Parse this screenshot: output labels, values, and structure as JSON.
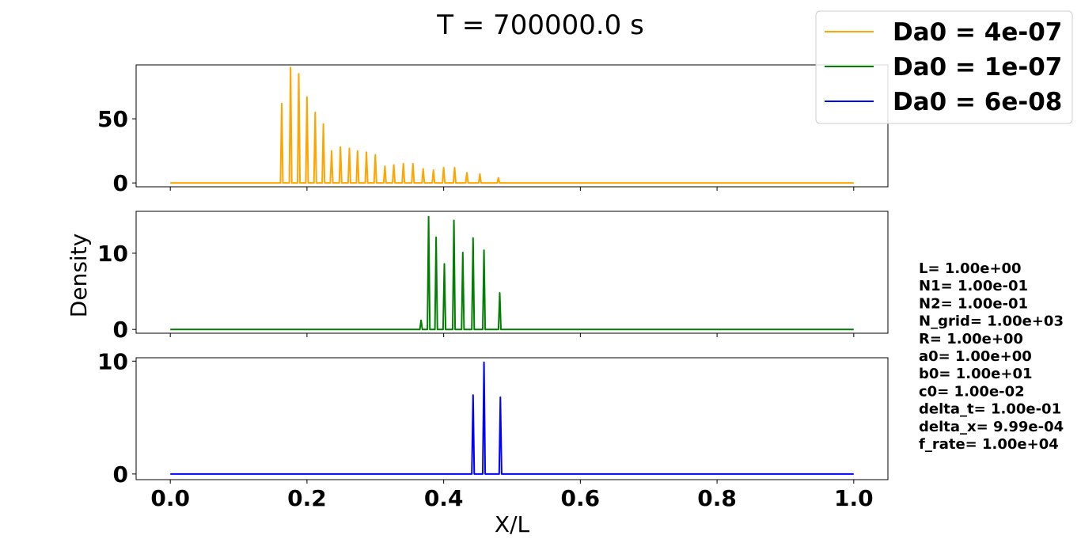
{
  "chart_data": {
    "type": "line",
    "title": "T = 700000.0 s",
    "xlabel": "X/L",
    "ylabel": "Density",
    "xlim": [
      -0.05,
      1.05
    ],
    "x_ticks": [
      "0.0",
      "0.2",
      "0.4",
      "0.6",
      "0.8",
      "1.0"
    ],
    "legend_location": "top-right",
    "subplots": [
      {
        "series_name": "Da0 = 4e-07",
        "color": "#ffa500",
        "ylim": [
          -3,
          92
        ],
        "y_ticks": [
          "0",
          "50"
        ],
        "peaks": [
          [
            0.163,
            62
          ],
          [
            0.176,
            90
          ],
          [
            0.188,
            85
          ],
          [
            0.2,
            67
          ],
          [
            0.212,
            55
          ],
          [
            0.224,
            46
          ],
          [
            0.236,
            25
          ],
          [
            0.249,
            28
          ],
          [
            0.262,
            27
          ],
          [
            0.274,
            25
          ],
          [
            0.287,
            24
          ],
          [
            0.3,
            22
          ],
          [
            0.314,
            13
          ],
          [
            0.327,
            14
          ],
          [
            0.341,
            15
          ],
          [
            0.355,
            15
          ],
          [
            0.37,
            11
          ],
          [
            0.385,
            10
          ],
          [
            0.4,
            12
          ],
          [
            0.416,
            12
          ],
          [
            0.434,
            8
          ],
          [
            0.453,
            7
          ],
          [
            0.48,
            4
          ]
        ]
      },
      {
        "series_name": "Da0 = 1e-07",
        "color": "#008000",
        "ylim": [
          -0.5,
          15.5
        ],
        "y_ticks": [
          "0",
          "10"
        ],
        "peaks": [
          [
            0.367,
            1.2
          ],
          [
            0.378,
            14.8
          ],
          [
            0.389,
            12.1
          ],
          [
            0.401,
            8.6
          ],
          [
            0.415,
            14.3
          ],
          [
            0.428,
            10.1
          ],
          [
            0.443,
            12.0
          ],
          [
            0.459,
            10.4
          ],
          [
            0.482,
            4.8
          ]
        ]
      },
      {
        "series_name": "Da0 = 6e-08",
        "color": "#0000ff",
        "ylim": [
          -0.5,
          10.3
        ],
        "y_ticks": [
          "0",
          "10"
        ],
        "peaks": [
          [
            0.443,
            7.0
          ],
          [
            0.459,
            9.9
          ],
          [
            0.483,
            6.8
          ]
        ]
      }
    ],
    "parameters": [
      "L= 1.00e+00",
      "N1= 1.00e-01",
      "N2= 1.00e-01",
      "N_grid= 1.00e+03",
      "R= 1.00e+00",
      "a0= 1.00e+00",
      "b0= 1.00e+01",
      "c0= 1.00e-02",
      "delta_t= 1.00e-01",
      "delta_x= 9.99e-04",
      "f_rate= 1.00e+04"
    ]
  }
}
